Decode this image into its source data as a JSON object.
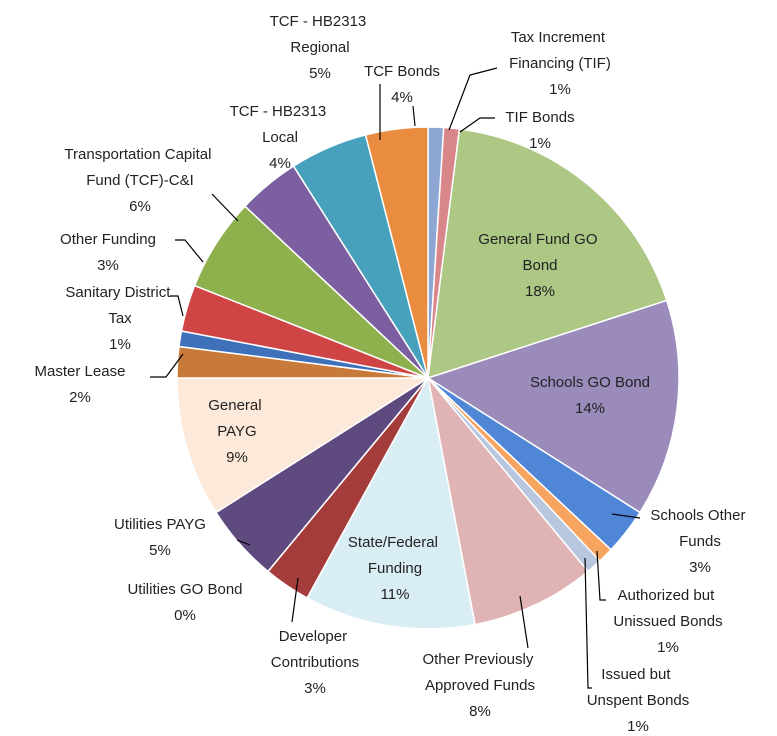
{
  "chart_data": {
    "type": "pie",
    "categories": [
      "Tax Increment Financing (TIF)",
      "TIF Bonds",
      "General Fund GO Bond",
      "Schools GO Bond",
      "Schools Other Funds",
      "Authorized but Unissued Bonds",
      "Issued but Unspent Bonds",
      "Other Previously Approved Funds",
      "State/Federal Funding",
      "Developer Contributions",
      "Utilities GO Bond",
      "Utilities PAYG",
      "General PAYG",
      "Master Lease",
      "Sanitary District Tax",
      "Other Funding",
      "Transportation Capital Fund (TCF)-C&I",
      "TCF - HB2313 Local",
      "TCF - HB2313 Regional",
      "TCF Bonds"
    ],
    "values": [
      1,
      1,
      18,
      14,
      3,
      1,
      1,
      8,
      11,
      3,
      0,
      5,
      9,
      2,
      1,
      3,
      6,
      4,
      5,
      4
    ],
    "value_labels": [
      "1%",
      "1%",
      "18%",
      "14%",
      "3%",
      "1%",
      "1%",
      "8%",
      "11%",
      "3%",
      "0%",
      "5%",
      "9%",
      "2%",
      "1%",
      "3%",
      "6%",
      "4%",
      "5%",
      "4%"
    ],
    "colors": [
      "#8da6d4",
      "#d9868a",
      "#adc785",
      "#9b8bba",
      "#4f86d6",
      "#f7a460",
      "#b8c6e0",
      "#e0b4b4",
      "#d9edf4",
      "#a43c3b",
      "#ffffff",
      "#5e4a7e",
      "#fde9d9",
      "#c87a3a",
      "#3e71ba",
      "#cf4444",
      "#8eb04d",
      "#7b5fa0",
      "#47a1bc",
      "#ea8c3f"
    ]
  }
}
